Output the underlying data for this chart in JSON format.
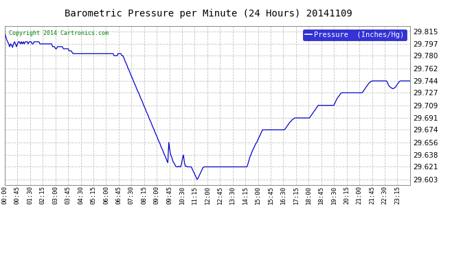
{
  "title": "Barometric Pressure per Minute (24 Hours) 20141109",
  "copyright_text": "Copyright 2014 Cartronics.com",
  "legend_text": "Pressure  (Inches/Hg)",
  "legend_bg": "#0000cc",
  "line_color": "#0000cc",
  "bg_color": "#ffffff",
  "plot_bg_color": "#ffffff",
  "grid_color": "#bbbbbb",
  "yticks": [
    29.603,
    29.621,
    29.638,
    29.656,
    29.674,
    29.691,
    29.709,
    29.727,
    29.744,
    29.762,
    29.78,
    29.797,
    29.815
  ],
  "ylim": [
    29.595,
    29.823
  ],
  "xtick_labels": [
    "00:00",
    "00:45",
    "01:30",
    "02:15",
    "03:00",
    "03:45",
    "04:30",
    "05:15",
    "06:00",
    "06:45",
    "07:30",
    "08:15",
    "09:00",
    "09:45",
    "10:30",
    "11:15",
    "12:00",
    "12:45",
    "13:30",
    "14:15",
    "15:00",
    "15:45",
    "16:30",
    "17:15",
    "18:00",
    "18:45",
    "19:30",
    "20:15",
    "21:00",
    "21:45",
    "22:30",
    "23:15"
  ],
  "pressure_data": [
    29.815,
    29.808,
    29.803,
    29.8,
    29.797,
    29.793,
    29.797,
    29.795,
    29.792,
    29.797,
    29.8,
    29.797,
    29.793,
    29.797,
    29.8,
    29.8,
    29.797,
    29.8,
    29.797,
    29.8,
    29.797,
    29.8,
    29.8,
    29.8,
    29.797,
    29.8,
    29.8,
    29.8,
    29.797,
    29.797,
    29.8,
    29.8,
    29.8,
    29.8,
    29.8,
    29.8,
    29.797,
    29.797,
    29.797,
    29.797,
    29.797,
    29.797,
    29.797,
    29.797,
    29.797,
    29.797,
    29.797,
    29.797,
    29.797,
    29.793,
    29.793,
    29.793,
    29.79,
    29.79,
    29.793,
    29.793,
    29.793,
    29.793,
    29.793,
    29.793,
    29.79,
    29.79,
    29.79,
    29.79,
    29.79,
    29.79,
    29.787,
    29.787,
    29.787,
    29.785,
    29.783,
    29.783,
    29.783,
    29.783,
    29.783,
    29.783,
    29.783,
    29.783,
    29.783,
    29.783,
    29.783,
    29.783,
    29.783,
    29.783,
    29.783,
    29.783,
    29.783,
    29.783,
    29.783,
    29.783,
    29.783,
    29.783,
    29.783,
    29.783,
    29.783,
    29.783,
    29.783,
    29.783,
    29.783,
    29.783,
    29.783,
    29.783,
    29.783,
    29.783,
    29.783,
    29.783,
    29.783,
    29.783,
    29.783,
    29.783,
    29.783,
    29.783,
    29.78,
    29.78,
    29.78,
    29.78,
    29.783,
    29.783,
    29.783,
    29.783,
    29.78,
    29.78,
    29.777,
    29.773,
    29.77,
    29.767,
    29.763,
    29.76,
    29.757,
    29.753,
    29.75,
    29.747,
    29.743,
    29.74,
    29.737,
    29.733,
    29.73,
    29.727,
    29.724,
    29.72,
    29.717,
    29.714,
    29.71,
    29.707,
    29.704,
    29.7,
    29.697,
    29.694,
    29.69,
    29.687,
    29.684,
    29.68,
    29.677,
    29.674,
    29.67,
    29.667,
    29.664,
    29.66,
    29.657,
    29.654,
    29.65,
    29.647,
    29.644,
    29.64,
    29.637,
    29.634,
    29.63,
    29.627,
    29.656,
    29.645,
    29.638,
    29.635,
    29.63,
    29.627,
    29.625,
    29.622,
    29.621,
    29.621,
    29.622,
    29.621,
    29.621,
    29.625,
    29.633,
    29.638,
    29.627,
    29.622,
    29.622,
    29.621,
    29.621,
    29.621,
    29.621,
    29.621,
    29.618,
    29.615,
    29.612,
    29.609,
    29.606,
    29.603,
    29.605,
    29.608,
    29.611,
    29.614,
    29.617,
    29.62,
    29.621,
    29.621,
    29.621,
    29.621,
    29.621,
    29.621,
    29.621,
    29.621,
    29.621,
    29.621,
    29.621,
    29.621,
    29.621,
    29.621,
    29.621,
    29.621,
    29.621,
    29.621,
    29.621,
    29.621,
    29.621,
    29.621,
    29.621,
    29.621,
    29.621,
    29.621,
    29.621,
    29.621,
    29.621,
    29.621,
    29.621,
    29.621,
    29.621,
    29.621,
    29.621,
    29.621,
    29.621,
    29.621,
    29.621,
    29.621,
    29.621,
    29.621,
    29.621,
    29.621,
    29.621,
    29.625,
    29.63,
    29.635,
    29.638,
    29.642,
    29.645,
    29.648,
    29.651,
    29.654,
    29.656,
    29.659,
    29.662,
    29.665,
    29.668,
    29.671,
    29.674,
    29.674,
    29.674,
    29.674,
    29.674,
    29.674,
    29.674,
    29.674,
    29.674,
    29.674,
    29.674,
    29.674,
    29.674,
    29.674,
    29.674,
    29.674,
    29.674,
    29.674,
    29.674,
    29.674,
    29.674,
    29.674,
    29.674,
    29.675,
    29.677,
    29.679,
    29.681,
    29.683,
    29.685,
    29.686,
    29.688,
    29.689,
    29.69,
    29.691,
    29.691,
    29.691,
    29.691,
    29.691,
    29.691,
    29.691,
    29.691,
    29.691,
    29.691,
    29.691,
    29.691,
    29.691,
    29.691,
    29.691,
    29.691,
    29.693,
    29.695,
    29.697,
    29.699,
    29.701,
    29.703,
    29.705,
    29.707,
    29.709,
    29.709,
    29.709,
    29.709,
    29.709,
    29.709,
    29.709,
    29.709,
    29.709,
    29.709,
    29.709,
    29.709,
    29.709,
    29.709,
    29.709,
    29.709,
    29.709,
    29.712,
    29.715,
    29.718,
    29.72,
    29.722,
    29.724,
    29.726,
    29.727,
    29.727,
    29.727,
    29.727,
    29.727,
    29.727,
    29.727,
    29.727,
    29.727,
    29.727,
    29.727,
    29.727,
    29.727,
    29.727,
    29.727,
    29.727,
    29.727,
    29.727,
    29.727,
    29.727,
    29.727,
    29.727,
    29.729,
    29.731,
    29.733,
    29.735,
    29.737,
    29.739,
    29.741,
    29.742,
    29.743,
    29.744,
    29.744,
    29.744,
    29.744,
    29.744,
    29.744,
    29.744,
    29.744,
    29.744,
    29.744,
    29.744,
    29.744,
    29.744,
    29.744,
    29.744,
    29.744,
    29.741,
    29.738,
    29.736,
    29.735,
    29.734,
    29.733,
    29.733,
    29.734,
    29.735,
    29.737,
    29.739,
    29.741,
    29.743,
    29.744,
    29.744,
    29.744,
    29.744,
    29.744,
    29.744,
    29.744,
    29.744,
    29.744,
    29.744,
    29.744
  ]
}
